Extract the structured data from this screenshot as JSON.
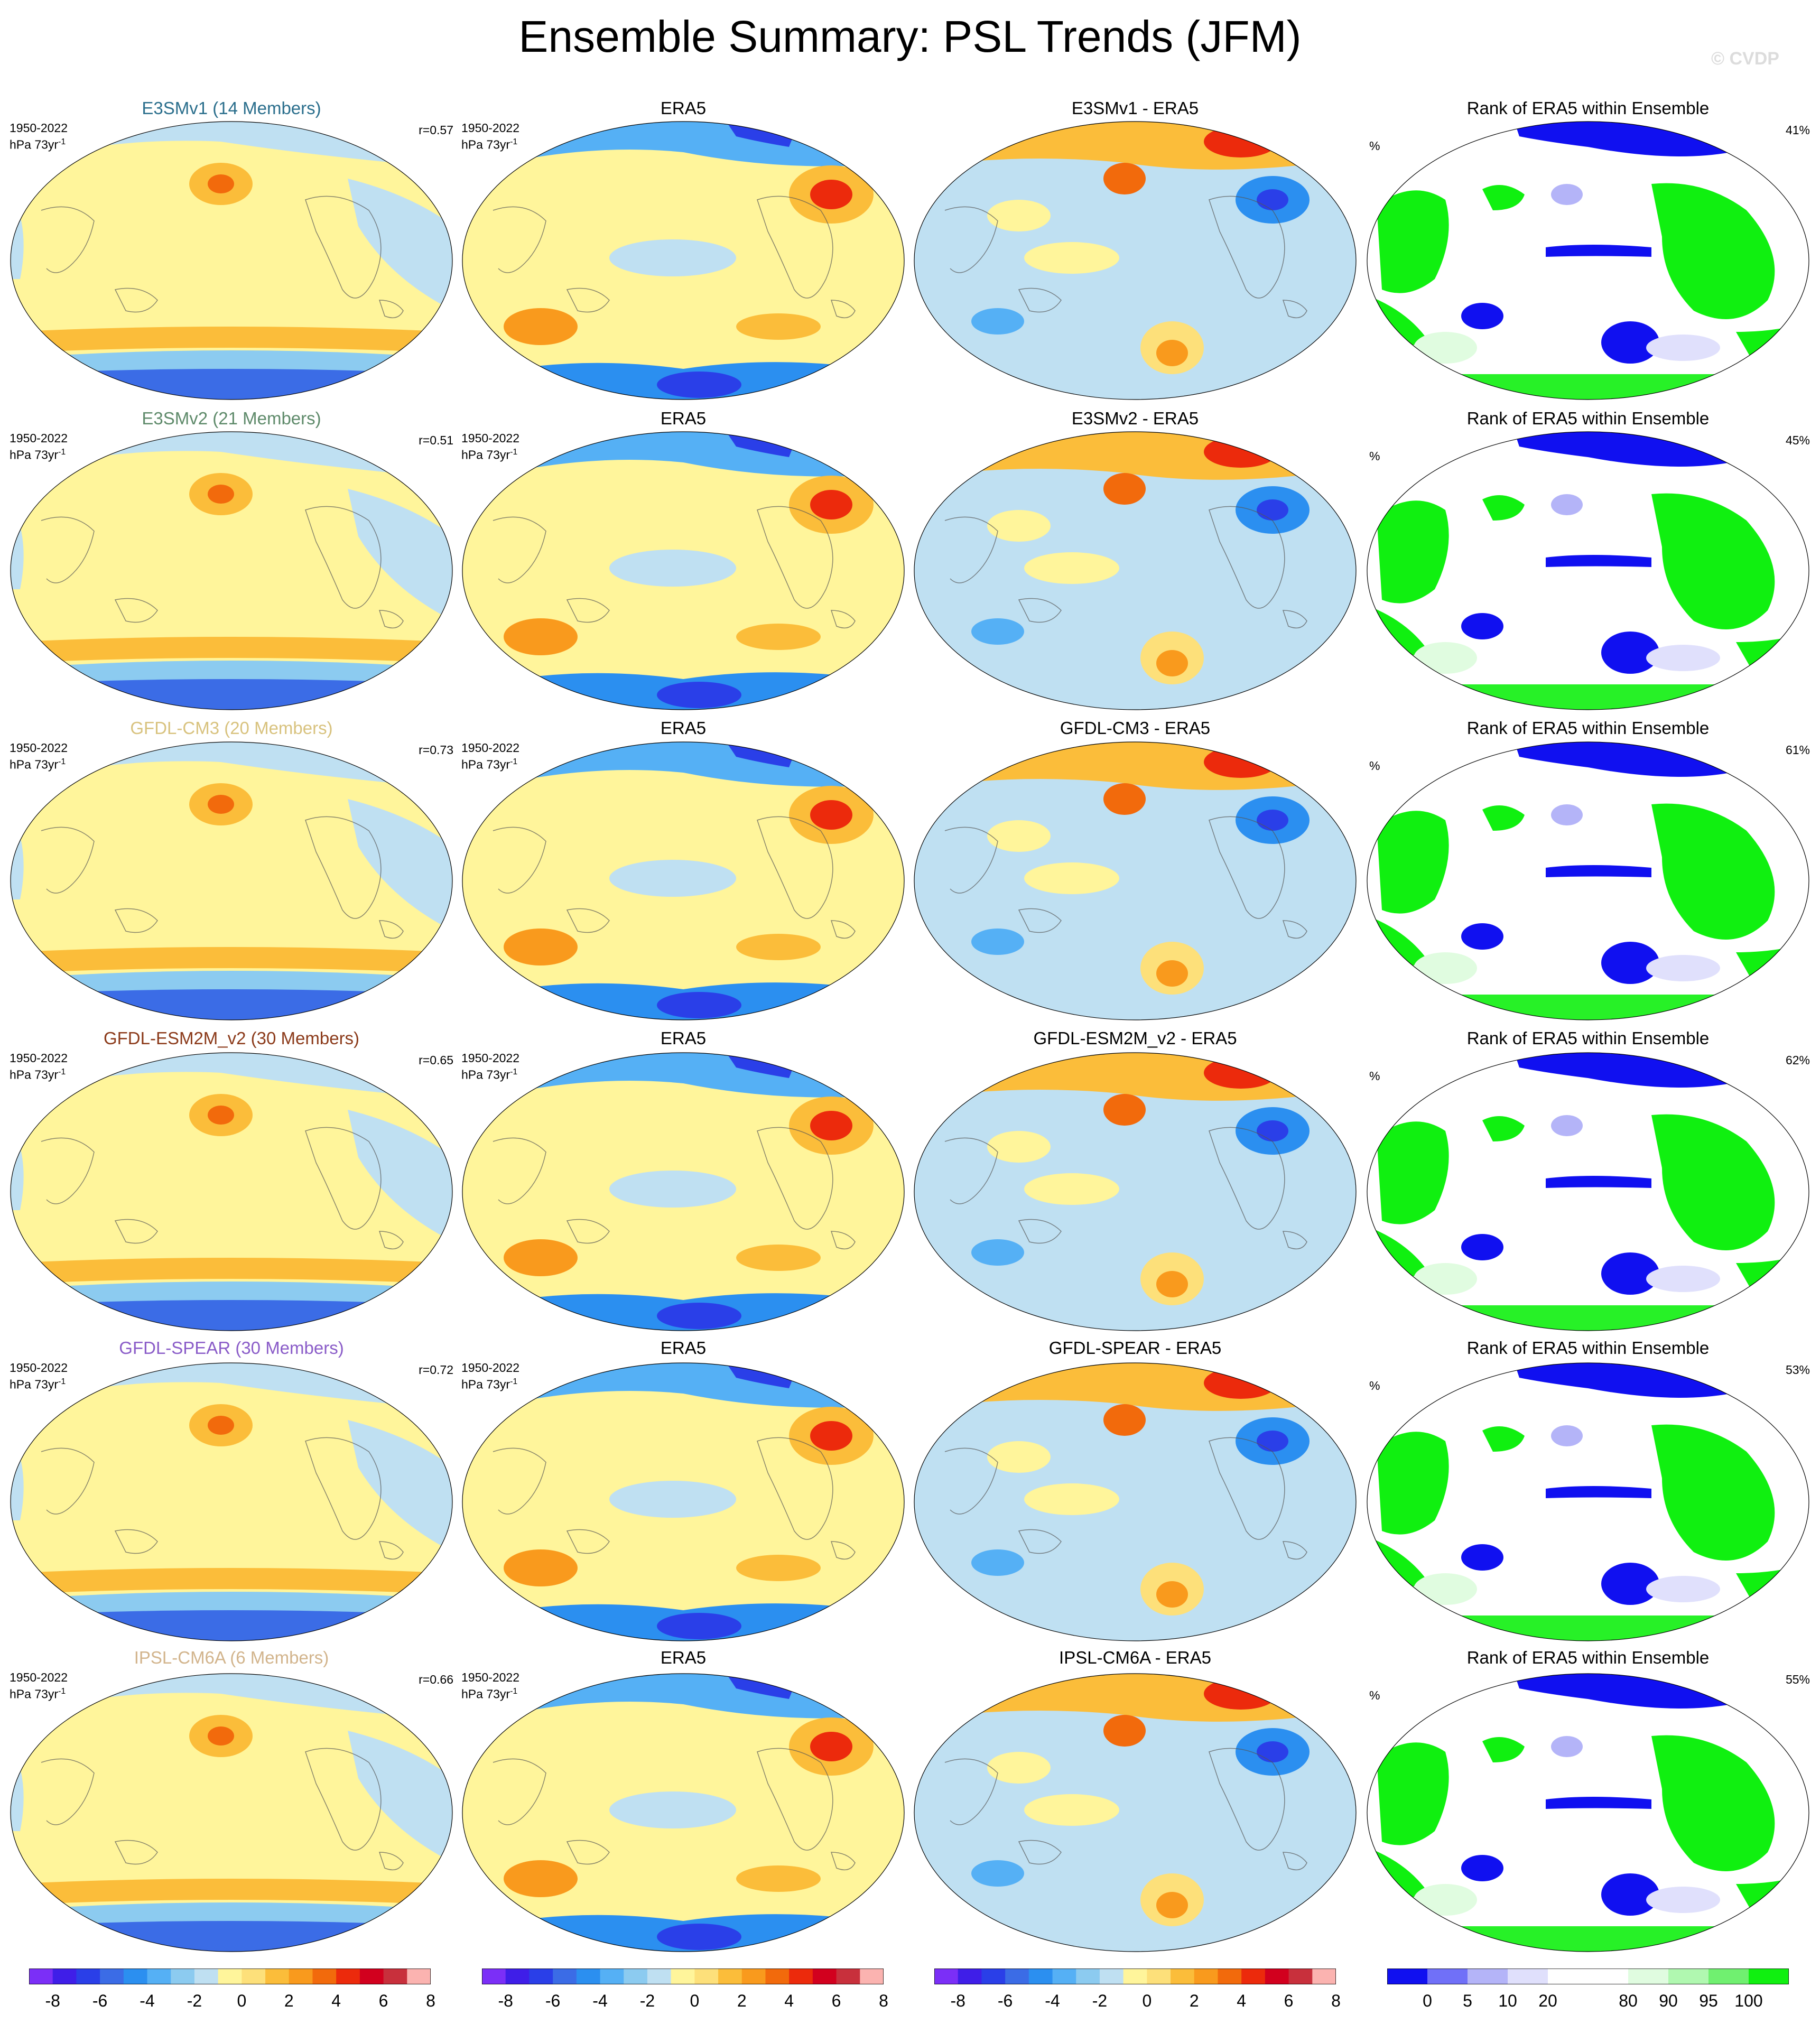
{
  "title": "Ensemble Summary: PSL Trends (JFM)",
  "watermark": "© CVDP",
  "rows": [
    {
      "model_title": "E3SMv1 (14 Members)",
      "model_color": "#2a6e8c",
      "corr": "r=0.57",
      "diff_title": "E3SMv1 - ERA5",
      "rank_pct": "41%"
    },
    {
      "model_title": "E3SMv2 (21 Members)",
      "model_color": "#5e8a6a",
      "corr": "r=0.51",
      "diff_title": "E3SMv2 - ERA5",
      "rank_pct": "45%"
    },
    {
      "model_title": "GFDL-CM3 (20 Members)",
      "model_color": "#d8c27e",
      "corr": "r=0.73",
      "diff_title": "GFDL-CM3 - ERA5",
      "rank_pct": "61%"
    },
    {
      "model_title": "GFDL-ESM2M_v2 (30 Members)",
      "model_color": "#8b3a1a",
      "corr": "r=0.65",
      "diff_title": "GFDL-ESM2M_v2 - ERA5",
      "rank_pct": "62%"
    },
    {
      "model_title": "GFDL-SPEAR (30 Members)",
      "model_color": "#8a5cc8",
      "corr": "r=0.72",
      "diff_title": "GFDL-SPEAR - ERA5",
      "rank_pct": "53%"
    },
    {
      "model_title": "IPSL-CM6A (6 Members)",
      "model_color": "#d2b48c",
      "corr": "r=0.66",
      "diff_title": "IPSL-CM6A - ERA5",
      "rank_pct": "55%"
    }
  ],
  "obs_title": "ERA5",
  "rank_title": "Rank of ERA5 within Ensemble",
  "period": "1950-2022",
  "units_main": "hPa 73yr",
  "units_sup": "-1",
  "rank_unit": "%",
  "trend_colorbar": {
    "colors": [
      "#7b2ff7",
      "#3f1ee8",
      "#2a3fe8",
      "#3b6ce6",
      "#2b8ff0",
      "#55b0f5",
      "#8ccbf0",
      "#bfe0f2",
      "#fff59b",
      "#fde07a",
      "#fbbd3a",
      "#f99a1d",
      "#f26a0c",
      "#ec2a0c",
      "#d2001e",
      "#c8303c",
      "#fbb3b0"
    ],
    "labels": [
      "-8",
      "-6",
      "-4",
      "-2",
      "0",
      "2",
      "4",
      "6",
      "8"
    ]
  },
  "rank_colorbar": {
    "colors": [
      "#1010f0",
      "#7070f8",
      "#b4b4f8",
      "#e0e0fc",
      "#ffffff",
      "#ffffff",
      "#e0fce0",
      "#b0f8b0",
      "#70f070",
      "#10f010"
    ],
    "labels": [
      "0",
      "5",
      "10",
      "20",
      "80",
      "90",
      "95",
      "100"
    ]
  }
}
